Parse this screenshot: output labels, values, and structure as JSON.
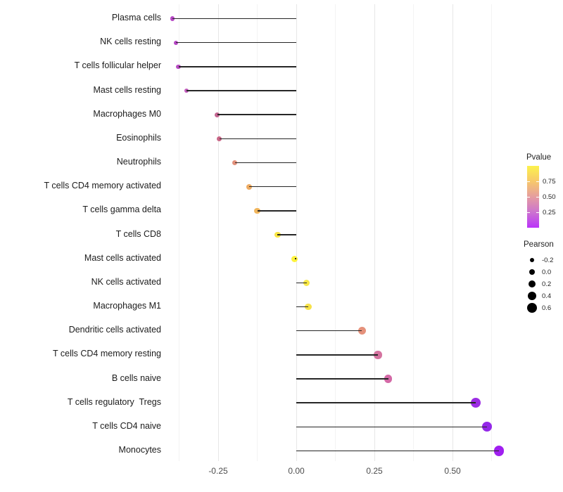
{
  "chart_data": {
    "type": "lollipop",
    "orientation": "horizontal",
    "title": "",
    "xlabel": "",
    "ylabel": "",
    "x_axis": {
      "tick_values": [
        -0.25,
        0,
        0.25,
        0.5
      ],
      "tick_labels": [
        "-0.25",
        "0.00",
        "0.25",
        "0.50"
      ],
      "minor_tick_values": [
        -0.375,
        -0.125,
        0.125,
        0.375,
        0.625
      ],
      "range": [
        -0.415,
        0.67
      ]
    },
    "points": [
      {
        "label": "Plasma cells",
        "pearson": -0.396,
        "color": "#b546c4"
      },
      {
        "label": "NK cells resting",
        "pearson": -0.385,
        "color": "#b546c4"
      },
      {
        "label": "T cells follicular helper",
        "pearson": -0.377,
        "color": "#b84dc3"
      },
      {
        "label": "Mast cells resting",
        "pearson": -0.351,
        "color": "#c25cbd"
      },
      {
        "label": "Macrophages M0",
        "pearson": -0.253,
        "color": "#c36590"
      },
      {
        "label": "Eosinophils",
        "pearson": -0.246,
        "color": "#c96787"
      },
      {
        "label": "Neutrophils",
        "pearson": -0.197,
        "color": "#e2917c"
      },
      {
        "label": "T cells CD4 memory activated",
        "pearson": -0.15,
        "color": "#eeab62"
      },
      {
        "label": "T cells gamma delta",
        "pearson": -0.125,
        "color": "#f0b55c"
      },
      {
        "label": "T cells CD8",
        "pearson": -0.06,
        "color": "#f9e544"
      },
      {
        "label": "Mast cells activated",
        "pearson": -0.005,
        "color": "#fdf23c"
      },
      {
        "label": "NK cells activated",
        "pearson": 0.033,
        "color": "#f9e847"
      },
      {
        "label": "Macrophages M1",
        "pearson": 0.038,
        "color": "#f7e24a"
      },
      {
        "label": "Dendritic cells activated",
        "pearson": 0.21,
        "color": "#e5917b"
      },
      {
        "label": "T cells CD4 memory resting",
        "pearson": 0.261,
        "color": "#d4739f"
      },
      {
        "label": "B cells naive",
        "pearson": 0.294,
        "color": "#d369a6"
      },
      {
        "label": "T cells regulatory  Tregs",
        "pearson": 0.575,
        "color": "#9c2ce4"
      },
      {
        "label": "T cells CD4 naive",
        "pearson": 0.61,
        "color": "#9428e8"
      },
      {
        "label": "Monocytes",
        "pearson": 0.649,
        "color": "#a01ff0"
      }
    ],
    "legend_pvalue": {
      "title": "Pvalue",
      "tick_values": [
        0.75,
        0.5,
        0.25
      ],
      "tick_labels": [
        "0.75",
        "0.50",
        "0.25"
      ],
      "gradient_top_to_bottom": [
        "#fcf24c",
        "#f7c86b",
        "#e59da0",
        "#cc73cf",
        "#ba33fa"
      ]
    },
    "legend_pearson": {
      "title": "Pearson",
      "items": [
        {
          "label": "-0.2",
          "diameter": 6.7
        },
        {
          "label": "0.0",
          "diameter": 8.3
        },
        {
          "label": "0.2",
          "diameter": 10
        },
        {
          "label": "0.4",
          "diameter": 12
        },
        {
          "label": "0.6",
          "diameter": 14
        }
      ]
    },
    "style": {
      "segment_color": "#262626",
      "major_grid_color": "#e7e7e7",
      "minor_grid_color": "#f3f3f3"
    }
  }
}
